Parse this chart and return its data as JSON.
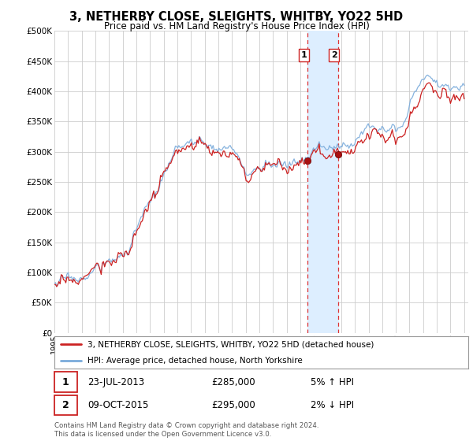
{
  "title": "3, NETHERBY CLOSE, SLEIGHTS, WHITBY, YO22 5HD",
  "subtitle": "Price paid vs. HM Land Registry's House Price Index (HPI)",
  "ylabel_ticks": [
    "£0",
    "£50K",
    "£100K",
    "£150K",
    "£200K",
    "£250K",
    "£300K",
    "£350K",
    "£400K",
    "£450K",
    "£500K"
  ],
  "ytick_values": [
    0,
    50000,
    100000,
    150000,
    200000,
    250000,
    300000,
    350000,
    400000,
    450000,
    500000
  ],
  "ylim": [
    0,
    500000
  ],
  "hpi_color": "#7aabdb",
  "price_color": "#cc2222",
  "highlight_color": "#ddeeff",
  "sale1_t": 2013.55,
  "sale2_t": 2015.77,
  "sale1_price": 285000,
  "sale2_price": 295000,
  "legend_property": "3, NETHERBY CLOSE, SLEIGHTS, WHITBY, YO22 5HD (detached house)",
  "legend_hpi": "HPI: Average price, detached house, North Yorkshire",
  "footer": "Contains HM Land Registry data © Crown copyright and database right 2024.\nThis data is licensed under the Open Government Licence v3.0.",
  "background_color": "#ffffff",
  "grid_color": "#cccccc",
  "xlim_start": 1995,
  "xlim_end": 2025.3
}
